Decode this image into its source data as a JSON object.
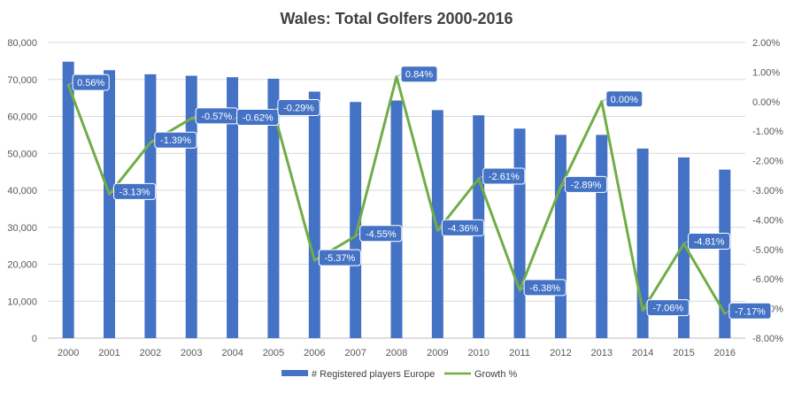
{
  "chart_data": {
    "type": "bar",
    "title": "Wales: Total Golfers 2000-2016",
    "categories": [
      "2000",
      "2001",
      "2002",
      "2003",
      "2004",
      "2005",
      "2006",
      "2007",
      "2008",
      "2009",
      "2010",
      "2011",
      "2012",
      "2013",
      "2014",
      "2015",
      "2016"
    ],
    "series": [
      {
        "name": "# Registered players Europe",
        "type": "bar",
        "axis": "left",
        "color": "#4472C4",
        "values": [
          74800,
          72500,
          71400,
          71000,
          70600,
          70200,
          66700,
          63900,
          64300,
          61700,
          60300,
          56700,
          55000,
          55000,
          51300,
          48900,
          45600
        ]
      },
      {
        "name": "Growth %",
        "type": "line",
        "axis": "right",
        "color": "#70AD47",
        "values": [
          0.56,
          -3.13,
          -1.39,
          -0.57,
          -0.62,
          -0.29,
          -5.37,
          -4.55,
          0.84,
          -4.36,
          -2.61,
          -6.38,
          -2.89,
          0.0,
          -7.06,
          -4.81,
          -7.17
        ],
        "labels": [
          "0.56%",
          "-3.13%",
          "-1.39%",
          "-0.57%",
          "-0.62%",
          "-0.29%",
          "-5.37%",
          "-4.55%",
          "0.84%",
          "-4.36%",
          "-2.61%",
          "-6.38%",
          "-2.89%",
          "0.00%",
          "-7.06%",
          "-4.81%",
          "-7.17%"
        ]
      }
    ],
    "y_left": {
      "range": [
        0,
        80000
      ],
      "ticks": [
        "0",
        "10,000",
        "20,000",
        "30,000",
        "40,000",
        "50,000",
        "60,000",
        "70,000",
        "80,000"
      ]
    },
    "y_right": {
      "range": [
        -8,
        2
      ],
      "ticks": [
        "-8.00%",
        "-7.00%",
        "-6.00%",
        "-5.00%",
        "-4.00%",
        "-3.00%",
        "-2.00%",
        "-1.00%",
        "0.00%",
        "1.00%",
        "2.00%"
      ]
    },
    "grid": true,
    "legend_position": "bottom",
    "label_box_color": "#4472C4"
  }
}
